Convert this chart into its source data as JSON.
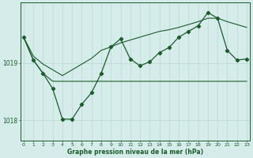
{
  "background_color": "#d6eceb",
  "grid_color": "#b8d8d5",
  "line_color": "#1a5c2a",
  "title": "Graphe pression niveau de la mer (hPa)",
  "xlim": [
    -0.3,
    23.3
  ],
  "ylim": [
    1017.65,
    1020.05
  ],
  "yticks": [
    1018,
    1019
  ],
  "xticks": [
    0,
    1,
    2,
    3,
    4,
    5,
    6,
    7,
    8,
    9,
    10,
    11,
    12,
    13,
    14,
    15,
    16,
    17,
    18,
    19,
    20,
    21,
    22,
    23
  ],
  "series_main": {
    "x": [
      0,
      1,
      2,
      3,
      4,
      5,
      6,
      7,
      8,
      9,
      10,
      11,
      12,
      13,
      14,
      15,
      16,
      17,
      18,
      19,
      20,
      21,
      22,
      23
    ],
    "y": [
      1019.45,
      1019.05,
      1018.82,
      1018.55,
      1018.02,
      1018.02,
      1018.28,
      1018.48,
      1018.82,
      1019.28,
      1019.42,
      1019.07,
      1018.95,
      1019.02,
      1019.18,
      1019.27,
      1019.45,
      1019.55,
      1019.65,
      1019.88,
      1019.78,
      1019.22,
      1019.05,
      1019.07
    ]
  },
  "series_flat": {
    "x": [
      0,
      1,
      2,
      3,
      4,
      5,
      6,
      7,
      8,
      9,
      10,
      11,
      12,
      13,
      14,
      15,
      16,
      17,
      18,
      19,
      20,
      21,
      22,
      23
    ],
    "y": [
      1019.45,
      1019.05,
      1018.82,
      1018.68,
      1018.68,
      1018.68,
      1018.68,
      1018.68,
      1018.68,
      1018.68,
      1018.68,
      1018.68,
      1018.68,
      1018.68,
      1018.68,
      1018.68,
      1018.68,
      1018.68,
      1018.68,
      1018.68,
      1018.68,
      1018.68,
      1018.68,
      1018.68
    ]
  },
  "series_rising": {
    "x": [
      0,
      1,
      2,
      3,
      4,
      5,
      6,
      7,
      8,
      9,
      10,
      11,
      12,
      13,
      14,
      15,
      16,
      17,
      18,
      19,
      20,
      21,
      22,
      23
    ],
    "y": [
      1019.45,
      1019.12,
      1018.98,
      1018.88,
      1018.78,
      1018.88,
      1018.98,
      1019.08,
      1019.22,
      1019.28,
      1019.35,
      1019.4,
      1019.45,
      1019.5,
      1019.55,
      1019.58,
      1019.62,
      1019.67,
      1019.72,
      1019.78,
      1019.78,
      1019.72,
      1019.67,
      1019.62
    ]
  }
}
